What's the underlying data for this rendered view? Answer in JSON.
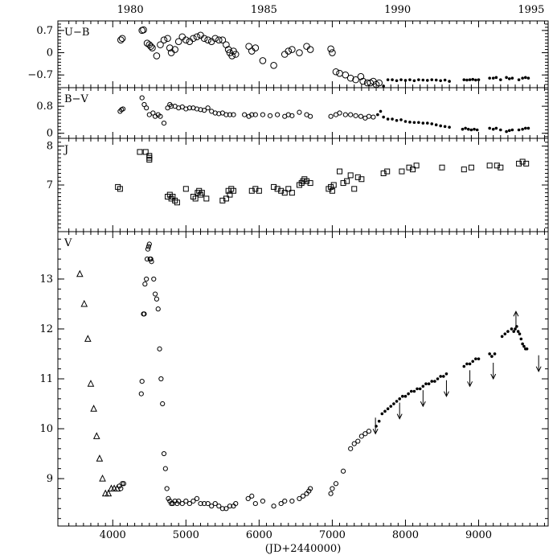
{
  "chart_data": [
    {
      "panel": "U-B",
      "type": "scatter",
      "ylabel": "U−B",
      "ylim": [
        1.0,
        -1.1
      ],
      "yticks": [
        -0.7,
        0,
        0.7
      ],
      "ytick_labels": [
        "−0.7",
        "0",
        "0.7"
      ],
      "series": [
        {
          "marker": "circle-open",
          "x": [
            4110,
            4130,
            4400,
            4420,
            4470,
            4500,
            4520,
            4540,
            4600,
            4650,
            4700,
            4750,
            4780,
            4800,
            4850,
            4900,
            4950,
            5000,
            5050,
            5100,
            5150,
            5200,
            5250,
            5300,
            5350,
            5400,
            5450,
            5500,
            5550,
            5580,
            5600,
            5630,
            5650,
            5680,
            5860,
            5900,
            5950,
            6050,
            6200,
            6350,
            6400,
            6450,
            6550,
            6650,
            6700,
            6980,
            7000,
            7050,
            7100,
            7180,
            7250,
            7320,
            7390,
            7420,
            7480,
            7520,
            7560,
            7600,
            7640
          ],
          "y": [
            0.4,
            0.45,
            0.7,
            0.72,
            0.3,
            0.25,
            0.2,
            0.15,
            -0.1,
            0.25,
            0.4,
            0.45,
            0.15,
            0.0,
            0.1,
            0.35,
            0.5,
            0.4,
            0.35,
            0.45,
            0.5,
            0.55,
            0.45,
            0.4,
            0.35,
            0.45,
            0.4,
            0.4,
            0.25,
            0.1,
            0.0,
            -0.1,
            0.05,
            -0.05,
            0.2,
            0.05,
            0.15,
            -0.25,
            -0.4,
            -0.05,
            0.05,
            0.1,
            0.0,
            0.2,
            0.1,
            0.12,
            0.0,
            -0.6,
            -0.65,
            -0.7,
            -0.8,
            -0.85,
            -0.75,
            -0.9,
            -0.95,
            -0.95,
            -0.9,
            -1.0,
            -0.95
          ]
        },
        {
          "marker": "dot",
          "x": [
            7700,
            7760,
            7820,
            7880,
            7940,
            8000,
            8060,
            8120,
            8180,
            8240,
            8300,
            8360,
            8420,
            8480,
            8540,
            8600,
            8800,
            8840,
            8880,
            8920,
            8960,
            9000,
            9150,
            9200,
            9240,
            9300,
            9380,
            9420,
            9460,
            9550,
            9600,
            9640,
            9680
          ],
          "y": [
            -1.05,
            -0.85,
            -0.85,
            -0.88,
            -0.85,
            -0.87,
            -0.85,
            -0.88,
            -0.85,
            -0.86,
            -0.87,
            -0.85,
            -0.86,
            -0.88,
            -0.86,
            -0.9,
            -0.85,
            -0.86,
            -0.85,
            -0.84,
            -0.86,
            -0.85,
            -0.8,
            -0.8,
            -0.78,
            -0.85,
            -0.78,
            -0.82,
            -0.8,
            -0.85,
            -0.8,
            -0.78,
            -0.8
          ]
        }
      ]
    },
    {
      "panel": "B-V",
      "type": "scatter",
      "ylabel": "B−V",
      "ylim": [
        1.35,
        -0.15
      ],
      "yticks": [
        0,
        0.8
      ],
      "ytick_labels": [
        "0",
        "0.8"
      ],
      "series": [
        {
          "marker": "circle-open",
          "x": [
            4100,
            4120,
            4140,
            4400,
            4430,
            4460,
            4500,
            4550,
            4580,
            4620,
            4650,
            4700,
            4750,
            4780,
            4800,
            4850,
            4900,
            4950,
            5000,
            5050,
            5100,
            5150,
            5200,
            5250,
            5300,
            5350,
            5400,
            5450,
            5500,
            5550,
            5600,
            5650,
            5800,
            5860,
            5900,
            5950,
            6050,
            6150,
            6250,
            6350,
            6400,
            6450,
            6550,
            6650,
            6700,
            6980,
            7050,
            7100,
            7180,
            7250,
            7320,
            7390,
            7450,
            7500,
            7560
          ],
          "y": [
            0.65,
            0.7,
            0.72,
            1.05,
            0.85,
            0.75,
            0.55,
            0.6,
            0.5,
            0.55,
            0.5,
            0.3,
            0.75,
            0.85,
            0.8,
            0.8,
            0.75,
            0.78,
            0.72,
            0.75,
            0.75,
            0.72,
            0.7,
            0.68,
            0.75,
            0.65,
            0.6,
            0.58,
            0.6,
            0.55,
            0.55,
            0.55,
            0.55,
            0.5,
            0.55,
            0.55,
            0.55,
            0.52,
            0.55,
            0.5,
            0.55,
            0.52,
            0.62,
            0.55,
            0.5,
            0.5,
            0.55,
            0.6,
            0.55,
            0.55,
            0.52,
            0.5,
            0.45,
            0.5,
            0.48
          ]
        },
        {
          "marker": "dot",
          "x": [
            7620,
            7660,
            7700,
            7760,
            7820,
            7880,
            7940,
            8000,
            8060,
            8120,
            8180,
            8240,
            8300,
            8360,
            8420,
            8480,
            8540,
            8600,
            8780,
            8820,
            8860,
            8900,
            8940,
            8980,
            9150,
            9200,
            9240,
            9300,
            9380,
            9420,
            9460,
            9550,
            9600,
            9640,
            9680
          ],
          "y": [
            0.55,
            0.65,
            0.48,
            0.42,
            0.42,
            0.38,
            0.4,
            0.35,
            0.33,
            0.32,
            0.32,
            0.3,
            0.3,
            0.28,
            0.25,
            0.22,
            0.2,
            0.18,
            0.12,
            0.15,
            0.12,
            0.1,
            0.12,
            0.1,
            0.15,
            0.12,
            0.15,
            0.1,
            0.05,
            0.08,
            0.1,
            0.1,
            0.12,
            0.15,
            0.15
          ]
        }
      ]
    },
    {
      "panel": "J",
      "type": "scatter",
      "ylabel": "J",
      "ylim": [
        8.2,
        5.8
      ],
      "yticks": [
        7,
        8
      ],
      "ytick_labels": [
        "7",
        "8"
      ],
      "series": [
        {
          "marker": "square-open",
          "x": [
            4070,
            4100,
            4370,
            4450,
            4500,
            4500,
            4500,
            4750,
            4780,
            4800,
            4820,
            4850,
            4880,
            5000,
            5100,
            5130,
            5160,
            5180,
            5200,
            5220,
            5280,
            5500,
            5550,
            5580,
            5600,
            5620,
            5650,
            5900,
            5950,
            6000,
            6200,
            6250,
            6300,
            6350,
            6400,
            6450,
            6550,
            6580,
            6600,
            6620,
            6650,
            6700,
            6950,
            6980,
            7000,
            7020,
            7100,
            7150,
            7200,
            7250,
            7300,
            7350,
            7400,
            7700,
            7750,
            7950,
            8050,
            8100,
            8150,
            8500,
            8800,
            8900,
            9150,
            9250,
            9300,
            9550,
            9600,
            9650
          ],
          "y": [
            6.95,
            6.9,
            7.85,
            7.85,
            7.65,
            7.7,
            7.75,
            6.7,
            6.75,
            6.65,
            6.7,
            6.6,
            6.55,
            6.9,
            6.7,
            6.65,
            6.8,
            6.85,
            6.75,
            6.8,
            6.65,
            6.6,
            6.65,
            6.85,
            6.75,
            6.9,
            6.85,
            6.85,
            6.9,
            6.85,
            6.95,
            6.9,
            6.85,
            6.8,
            6.9,
            6.8,
            7.0,
            7.05,
            7.1,
            7.15,
            7.1,
            7.05,
            6.9,
            6.95,
            6.85,
            7.0,
            7.35,
            7.05,
            7.1,
            7.25,
            6.9,
            7.2,
            7.15,
            7.3,
            7.35,
            7.35,
            7.45,
            7.4,
            7.5,
            7.45,
            7.4,
            7.45,
            7.5,
            7.5,
            7.45,
            7.55,
            7.6,
            7.55
          ]
        }
      ]
    },
    {
      "panel": "V",
      "type": "scatter",
      "xlabel": "(JD+2440000)",
      "ylabel": "V",
      "xlim": [
        3250,
        9950
      ],
      "ylim": [
        13.95,
        8.05
      ],
      "xticks": [
        4000,
        5000,
        6000,
        7000,
        8000,
        9000
      ],
      "xtick_labels": [
        "4000",
        "5000",
        "6000",
        "7000",
        "8000",
        "9000"
      ],
      "yticks": [
        9,
        10,
        11,
        12,
        13
      ],
      "ytick_labels": [
        "9",
        "10",
        "11",
        "12",
        "13"
      ],
      "top_axis": {
        "years": [
          "1980",
          "1985",
          "1990",
          "1995"
        ],
        "jd": [
          4240,
          6066,
          7892,
          9718
        ]
      },
      "series": [
        {
          "marker": "triangle-open",
          "x": [
            3550,
            3610,
            3660,
            3700,
            3740,
            3780,
            3820,
            3860,
            3900,
            3940,
            3980,
            4020,
            4060
          ],
          "y": [
            13.1,
            12.5,
            11.8,
            10.9,
            10.4,
            9.85,
            9.4,
            9.0,
            8.7,
            8.7,
            8.8,
            8.8,
            8.8
          ]
        },
        {
          "marker": "circle-open",
          "x": [
            4090,
            4110,
            4130,
            4150,
            4390,
            4400,
            4420,
            4430,
            4440,
            4460,
            4470,
            4480,
            4490,
            4500,
            4510,
            4520,
            4530,
            4560,
            4580,
            4600,
            4620,
            4640,
            4660,
            4680,
            4700,
            4720,
            4740,
            4760,
            4780,
            4800,
            4820,
            4850,
            4880,
            4900,
            4950,
            5000,
            5050,
            5100,
            5150,
            5200,
            5250,
            5300,
            5350,
            5400,
            5450,
            5500,
            5550,
            5600,
            5650,
            5680,
            5850,
            5900,
            5950,
            6050,
            6200,
            6300,
            6350,
            6450,
            6550,
            6600,
            6650,
            6680,
            6700,
            6980,
            7000,
            7050,
            7150,
            7250,
            7300,
            7350,
            7400,
            7450,
            7500
          ],
          "y": [
            8.85,
            8.8,
            8.9,
            8.9,
            10.7,
            10.95,
            12.3,
            12.3,
            12.9,
            13.0,
            13.4,
            13.6,
            13.65,
            13.7,
            13.4,
            13.4,
            13.35,
            13.0,
            12.7,
            12.6,
            12.4,
            11.6,
            11.0,
            10.5,
            9.5,
            9.2,
            8.8,
            8.6,
            8.55,
            8.5,
            8.5,
            8.55,
            8.5,
            8.55,
            8.5,
            8.55,
            8.5,
            8.55,
            8.6,
            8.5,
            8.5,
            8.5,
            8.45,
            8.5,
            8.45,
            8.4,
            8.4,
            8.45,
            8.45,
            8.5,
            8.6,
            8.65,
            8.5,
            8.55,
            8.45,
            8.5,
            8.55,
            8.55,
            8.6,
            8.65,
            8.7,
            8.75,
            8.8,
            8.7,
            8.8,
            8.9,
            9.15,
            9.6,
            9.7,
            9.75,
            9.85,
            9.9,
            9.95
          ]
        },
        {
          "marker": "dot",
          "x": [
            7600,
            7640,
            7680,
            7720,
            7760,
            7800,
            7840,
            7880,
            7920,
            7960,
            8000,
            8040,
            8080,
            8120,
            8160,
            8200,
            8240,
            8280,
            8320,
            8360,
            8400,
            8440,
            8480,
            8520,
            8560,
            8800,
            8840,
            8880,
            8920,
            8960,
            9000,
            9150,
            9180,
            9220,
            9320,
            9360,
            9400,
            9450,
            9480,
            9500,
            9520,
            9540,
            9560,
            9580,
            9600,
            9620,
            9640,
            9660
          ],
          "y": [
            10.05,
            10.15,
            10.3,
            10.35,
            10.4,
            10.45,
            10.5,
            10.55,
            10.6,
            10.65,
            10.65,
            10.7,
            10.75,
            10.75,
            10.8,
            10.8,
            10.85,
            10.9,
            10.9,
            10.95,
            10.95,
            11.0,
            11.05,
            11.05,
            11.1,
            11.25,
            11.3,
            11.3,
            11.35,
            11.4,
            11.4,
            11.5,
            11.45,
            11.5,
            11.85,
            11.9,
            11.95,
            12.0,
            11.95,
            12.0,
            12.05,
            11.95,
            11.9,
            11.8,
            11.7,
            11.65,
            11.6,
            11.6
          ]
        }
      ],
      "annotations": {
        "down_arrows_jd": [
          7590,
          7920,
          8240,
          8560,
          8880,
          9200,
          9820
        ],
        "down_arrows_tip_v": [
          9.9,
          10.2,
          10.45,
          10.65,
          10.85,
          11.0,
          11.15
        ],
        "up_arrow_jd": 9510,
        "up_arrow_tip_v": 12.35
      }
    }
  ]
}
